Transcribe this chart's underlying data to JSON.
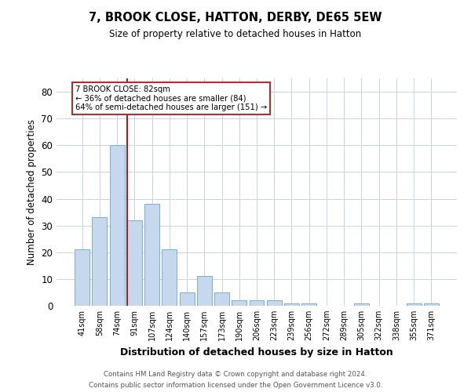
{
  "title": "7, BROOK CLOSE, HATTON, DERBY, DE65 5EW",
  "subtitle": "Size of property relative to detached houses in Hatton",
  "xlabel": "Distribution of detached houses by size in Hatton",
  "ylabel": "Number of detached properties",
  "footnote1": "Contains HM Land Registry data © Crown copyright and database right 2024.",
  "footnote2": "Contains public sector information licensed under the Open Government Licence v3.0.",
  "annotation_line1": "7 BROOK CLOSE: 82sqm",
  "annotation_line2": "← 36% of detached houses are smaller (84)",
  "annotation_line3": "64% of semi-detached houses are larger (151) →",
  "bar_labels": [
    "41sqm",
    "58sqm",
    "74sqm",
    "91sqm",
    "107sqm",
    "124sqm",
    "140sqm",
    "157sqm",
    "173sqm",
    "190sqm",
    "206sqm",
    "223sqm",
    "239sqm",
    "256sqm",
    "272sqm",
    "289sqm",
    "305sqm",
    "322sqm",
    "338sqm",
    "355sqm",
    "371sqm"
  ],
  "bar_values": [
    21,
    33,
    60,
    32,
    38,
    21,
    5,
    11,
    5,
    2,
    2,
    2,
    1,
    1,
    0,
    0,
    1,
    0,
    0,
    1,
    1
  ],
  "bar_color": "#c5d8ed",
  "bar_edge_color": "#7aafd4",
  "vline_color": "#a02020",
  "annotation_box_color": "#b03030",
  "bg_color": "#ffffff",
  "grid_color": "#c8d4e0",
  "ylim": [
    0,
    85
  ],
  "yticks": [
    0,
    10,
    20,
    30,
    40,
    50,
    60,
    70,
    80
  ],
  "vline_pos": 2.57
}
